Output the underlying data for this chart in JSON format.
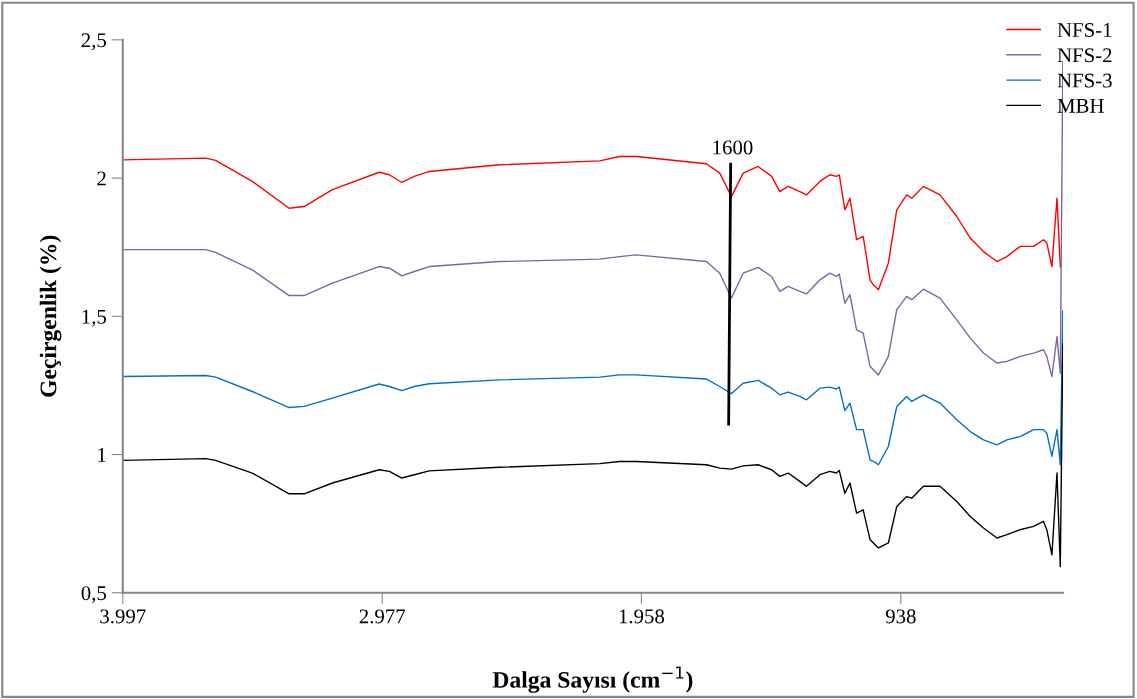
{
  "chart_data": {
    "type": "line",
    "xlabel": "Dalga Sayısı (cm$^{−1}$)",
    "ylabel": "Geçirgenlik (%)",
    "x": [
      3997,
      3671,
      3632,
      3488,
      3343,
      3284,
      3173,
      2989,
      2949,
      2900,
      2851,
      2792,
      2516,
      2122,
      2044,
      1978,
      1702,
      1650,
      1604,
      1558,
      1499,
      1446,
      1414,
      1381,
      1335,
      1309,
      1256,
      1217,
      1191,
      1180,
      1158,
      1138,
      1112,
      1086,
      1059,
      1046,
      1026,
      987,
      954,
      915,
      895,
      849,
      784,
      718,
      665,
      613,
      560,
      521,
      469,
      416,
      377,
      364,
      344,
      324,
      311,
      301
    ],
    "xlim": [
      3997,
      300
    ],
    "xticks": [
      {
        "value": 3997,
        "label": "3.997"
      },
      {
        "value": 2977,
        "label": "2.977"
      },
      {
        "value": 1958,
        "label": "1.958"
      },
      {
        "value": 938,
        "label": "938"
      }
    ],
    "ylim": [
      0.5,
      2.5
    ],
    "yticks": [
      {
        "value": 0.5,
        "label": "0,5"
      },
      {
        "value": 1,
        "label": "1"
      },
      {
        "value": 1.5,
        "label": "1,5"
      },
      {
        "value": 2,
        "label": "2"
      },
      {
        "value": 2.5,
        "label": "2,5"
      }
    ],
    "grid": false,
    "legend": "top right",
    "marker": "none",
    "line_style": "solid",
    "series": [
      {
        "name": "NFS-1",
        "color": "#ff0000",
        "values": [
          2.066,
          2.072,
          2.064,
          1.988,
          1.891,
          1.897,
          1.958,
          2.021,
          2.012,
          1.984,
          2.006,
          2.024,
          2.048,
          2.062,
          2.078,
          2.078,
          2.052,
          2.018,
          1.933,
          2.018,
          2.042,
          2.006,
          1.951,
          1.97,
          1.951,
          1.939,
          1.988,
          2.012,
          2.006,
          2.012,
          1.885,
          1.927,
          1.777,
          1.789,
          1.632,
          1.614,
          1.596,
          1.692,
          1.885,
          1.939,
          1.927,
          1.97,
          1.939,
          1.861,
          1.783,
          1.734,
          1.698,
          1.716,
          1.753,
          1.753,
          1.777,
          1.765,
          1.68,
          1.927,
          1.68,
          null
        ]
      },
      {
        "name": "NFS-2",
        "color": "#8064a2",
        "values": [
          1.741,
          1.741,
          1.731,
          1.668,
          1.575,
          1.575,
          1.62,
          1.68,
          1.674,
          1.646,
          1.662,
          1.68,
          1.698,
          1.707,
          1.716,
          1.722,
          1.698,
          1.656,
          1.566,
          1.656,
          1.677,
          1.644,
          1.59,
          1.608,
          1.59,
          1.581,
          1.632,
          1.656,
          1.644,
          1.653,
          1.548,
          1.578,
          1.451,
          1.439,
          1.319,
          1.307,
          1.288,
          1.355,
          1.524,
          1.572,
          1.56,
          1.598,
          1.566,
          1.487,
          1.421,
          1.367,
          1.331,
          1.337,
          1.355,
          1.367,
          1.379,
          1.355,
          1.282,
          1.427,
          1.294,
          2.42
        ]
      },
      {
        "name": "NFS-3",
        "color": "#0070c0",
        "values": [
          1.282,
          1.286,
          1.28,
          1.228,
          1.17,
          1.174,
          1.204,
          1.255,
          1.246,
          1.231,
          1.246,
          1.256,
          1.27,
          1.28,
          1.288,
          1.288,
          1.273,
          1.246,
          1.22,
          1.258,
          1.268,
          1.24,
          1.216,
          1.226,
          1.21,
          1.198,
          1.24,
          1.244,
          1.237,
          1.244,
          1.159,
          1.186,
          1.09,
          1.09,
          0.981,
          0.975,
          0.963,
          1.029,
          1.174,
          1.21,
          1.192,
          1.216,
          1.186,
          1.126,
          1.083,
          1.053,
          1.035,
          1.053,
          1.065,
          1.09,
          1.09,
          1.077,
          0.993,
          1.09,
          0.963,
          1.52
        ]
      },
      {
        "name": "MBH",
        "color": "#000000",
        "values": [
          0.979,
          0.985,
          0.979,
          0.933,
          0.858,
          0.858,
          0.897,
          0.945,
          0.939,
          0.915,
          0.927,
          0.941,
          0.954,
          0.967,
          0.975,
          0.975,
          0.963,
          0.951,
          0.947,
          0.959,
          0.963,
          0.945,
          0.921,
          0.933,
          0.903,
          0.885,
          0.927,
          0.939,
          0.933,
          0.942,
          0.86,
          0.897,
          0.788,
          0.8,
          0.692,
          0.68,
          0.662,
          0.68,
          0.812,
          0.848,
          0.842,
          0.885,
          0.885,
          0.83,
          0.776,
          0.734,
          0.698,
          0.71,
          0.728,
          0.74,
          0.758,
          0.728,
          0.637,
          0.933,
          0.595,
          1.4
        ]
      },
      {
        "type": "line",
        "x": [
          1607,
          1615
        ],
        "color": "#000000",
        "values": [
          2.05,
          1.11
        ]
      }
    ],
    "annotations": [
      {
        "text": "1600",
        "x": 1600,
        "y": 2.05
      }
    ]
  }
}
